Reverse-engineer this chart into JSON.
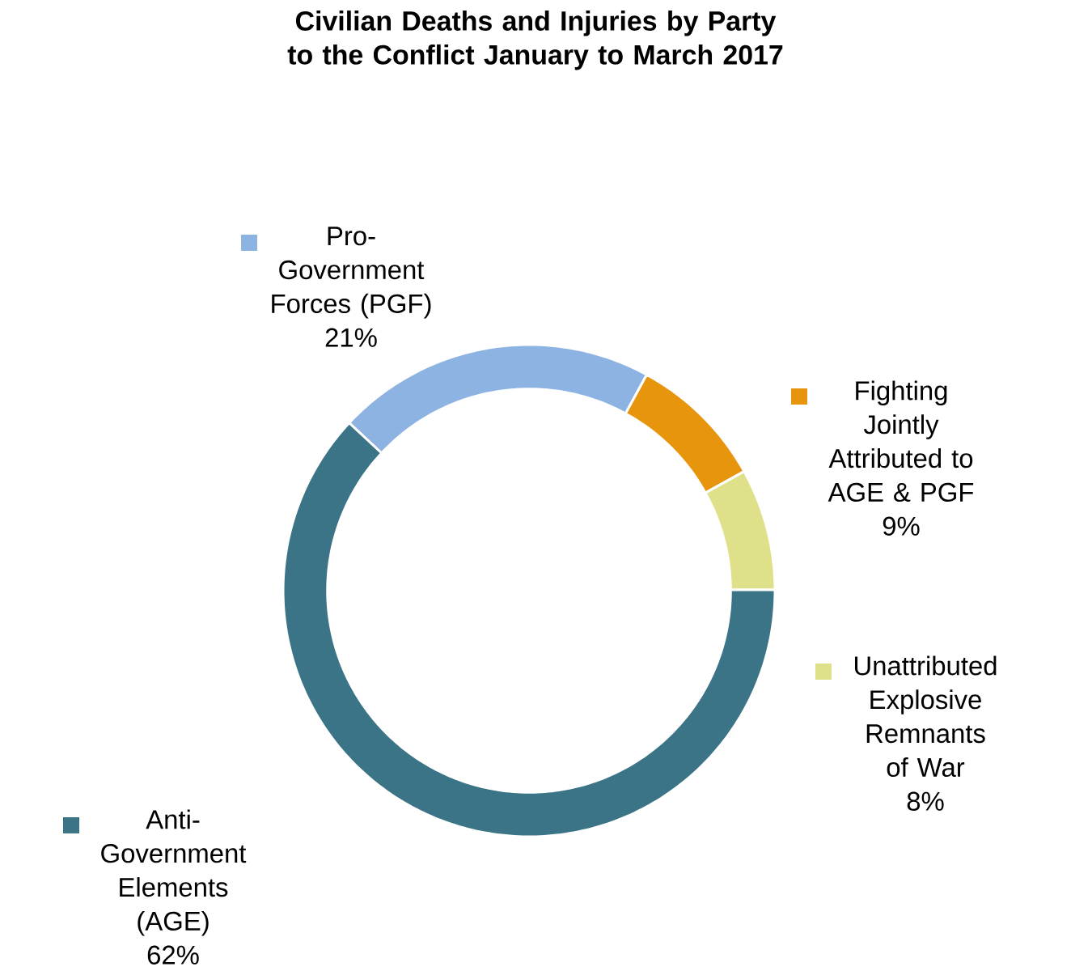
{
  "chart_data": {
    "type": "donut",
    "title": "Civilian Deaths and Injuries by Party to the Conflict January to March 2017",
    "categories": [
      "Pro-Government Forces (PGF)",
      "Fighting Jointly Attributed to AGE & PGF",
      "Unattributed Explosive Remnants of War",
      "Anti-Government Elements (AGE)"
    ],
    "values": [
      21,
      9,
      8,
      62
    ],
    "value_labels": [
      "21%",
      "9%",
      "8%",
      "62%"
    ],
    "colors": [
      "#8db3e2",
      "#e8950e",
      "#dfe08a",
      "#3b7487"
    ],
    "legend": "right"
  }
}
